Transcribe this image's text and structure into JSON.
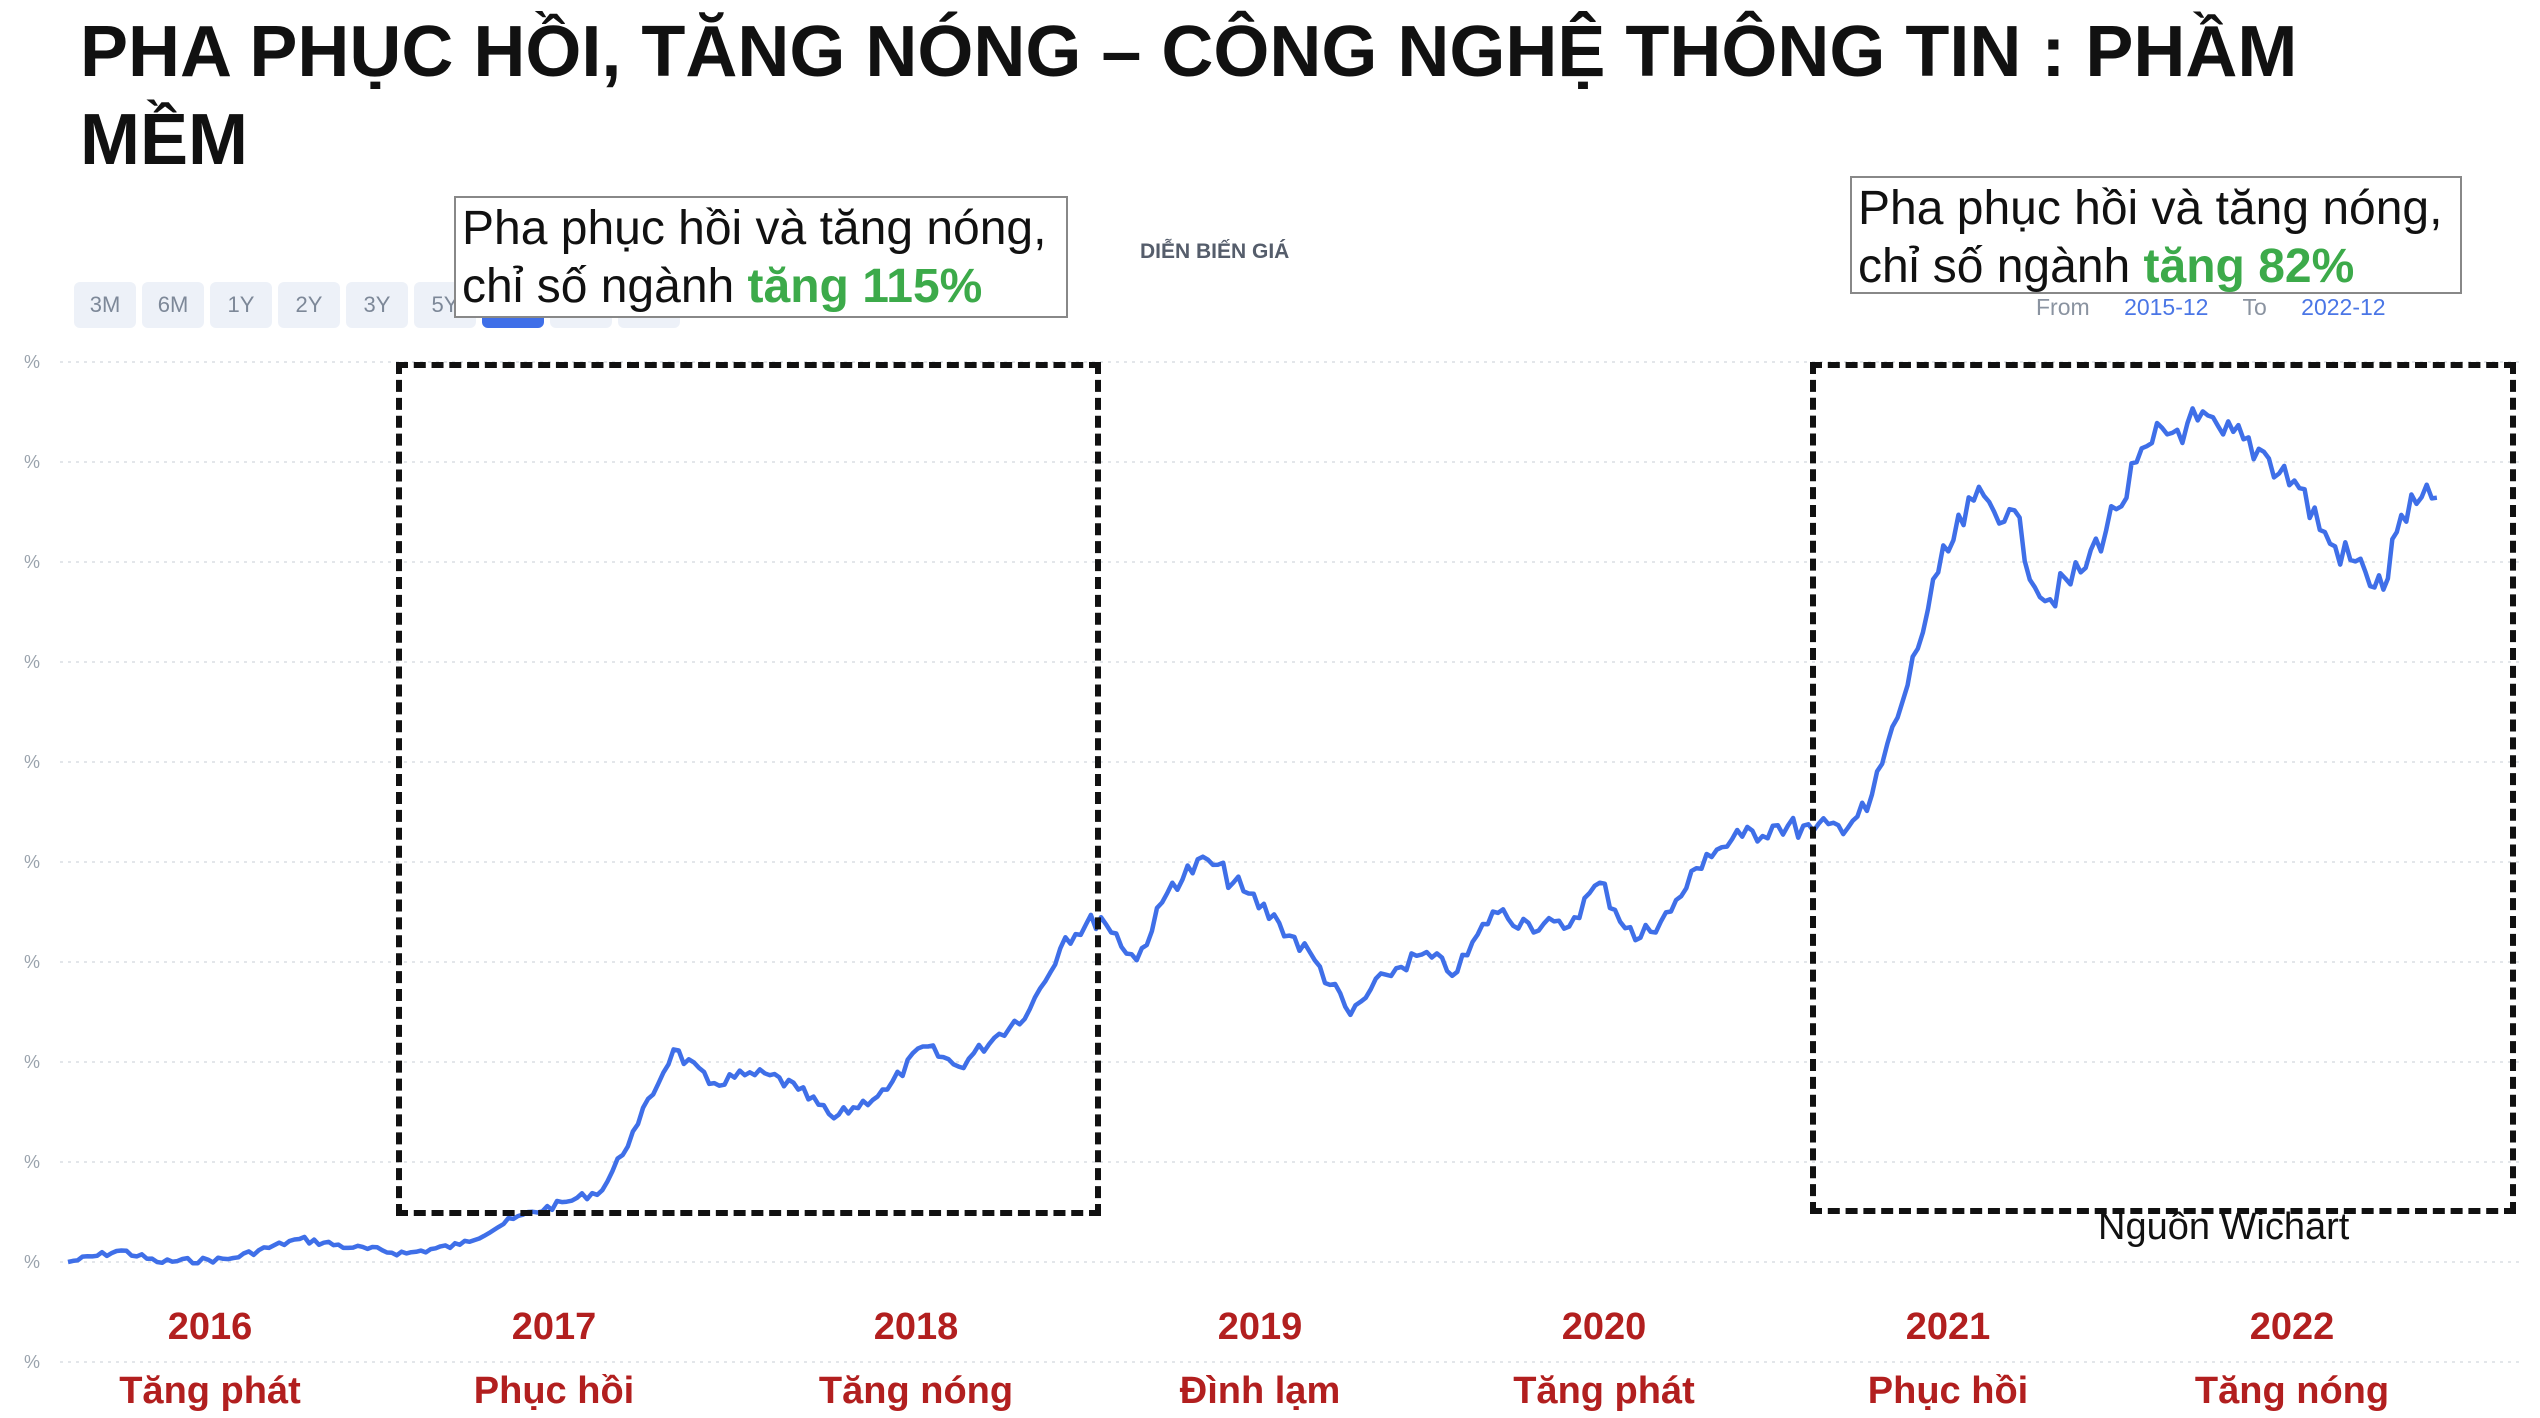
{
  "title": "PHA PHỤC HỒI, TĂNG NÓNG – CÔNG NGHỆ THÔNG TIN : PHẦM MỀM",
  "header": {
    "label": "DIỄN BIẾN GIÁ"
  },
  "range_tabs": [
    "3M",
    "6M",
    "1Y",
    "2Y",
    "3Y",
    "5Y",
    "",
    "",
    ""
  ],
  "active_tab_index": 6,
  "date_range": {
    "from_label": "From",
    "from": "2015-12",
    "to_label": "To",
    "to": "2022-12"
  },
  "callouts": [
    {
      "line1": "Pha phục hồi và tăng nóng,",
      "line2_prefix": "chỉ số ngành ",
      "line2_highlight": "tăng 115%"
    },
    {
      "line1": "Pha phục hồi và tăng nóng,",
      "line2_prefix": "chỉ số ngành ",
      "line2_highlight": "tăng 82%"
    }
  ],
  "y_ticks": [
    "%",
    "%",
    "%",
    "%",
    "%",
    "%",
    "%",
    "%",
    "%",
    "%",
    "%"
  ],
  "source": "Nguồn Wichart",
  "years": [
    "2016",
    "2017",
    "2018",
    "2019",
    "2020",
    "2021",
    "2022"
  ],
  "phases": [
    "Tăng phát",
    "Phục hồi",
    "Tăng nóng",
    "Đình lạm",
    "Tăng phát",
    "Phục hồi",
    "Tăng nóng"
  ],
  "colors": {
    "line": "#3f6fe8",
    "highlight": "#3caa4a",
    "year_label": "#b21f1f"
  },
  "chart_data": {
    "type": "line",
    "title": "DIỄN BIẾN GIÁ",
    "x_start": "2015-12",
    "x_end": "2022-12",
    "y_unit": "relative index (tick labels not legible)",
    "grid": true,
    "series": [
      {
        "x": [
          2015.95,
          2016.1,
          2016.2,
          2016.4,
          2016.6,
          2016.75,
          2016.9,
          2017.05,
          2017.2,
          2017.35,
          2017.45,
          2017.55,
          2017.65,
          2017.75,
          2017.85,
          2017.92,
          2018.0,
          2018.1,
          2018.25,
          2018.35,
          2018.45,
          2018.55,
          2018.65,
          2018.75,
          2018.85,
          2018.95,
          2019.05,
          2019.15,
          2019.25,
          2019.35,
          2019.45,
          2019.55,
          2019.65,
          2019.75,
          2019.85,
          2019.95,
          2020.05,
          2020.15,
          2020.25,
          2020.35,
          2020.45,
          2020.55,
          2020.65,
          2020.75,
          2020.85,
          2020.92,
          2021.0,
          2021.1,
          2021.2,
          2021.3,
          2021.4,
          2021.5,
          2021.6,
          2021.7,
          2021.8,
          2021.9,
          2022.0,
          2022.1,
          2022.2,
          2022.3,
          2022.4,
          2022.45,
          2022.5,
          2022.6
        ],
        "y": [
          100,
          104,
          100,
          101,
          108,
          105,
          103,
          106,
          115,
          121,
          125,
          148,
          174,
          162,
          165,
          165,
          160,
          150,
          160,
          175,
          168,
          178,
          188,
          213,
          220,
          205,
          232,
          240,
          229,
          218,
          205,
          186,
          200,
          207,
          201,
          222,
          218,
          216,
          232,
          212,
          222,
          242,
          248,
          252,
          250,
          252,
          257,
          295,
          340,
          365,
          362,
          330,
          340,
          362,
          385,
          392,
          388,
          383,
          372,
          350,
          340,
          334,
          360,
          366
        ]
      }
    ]
  }
}
